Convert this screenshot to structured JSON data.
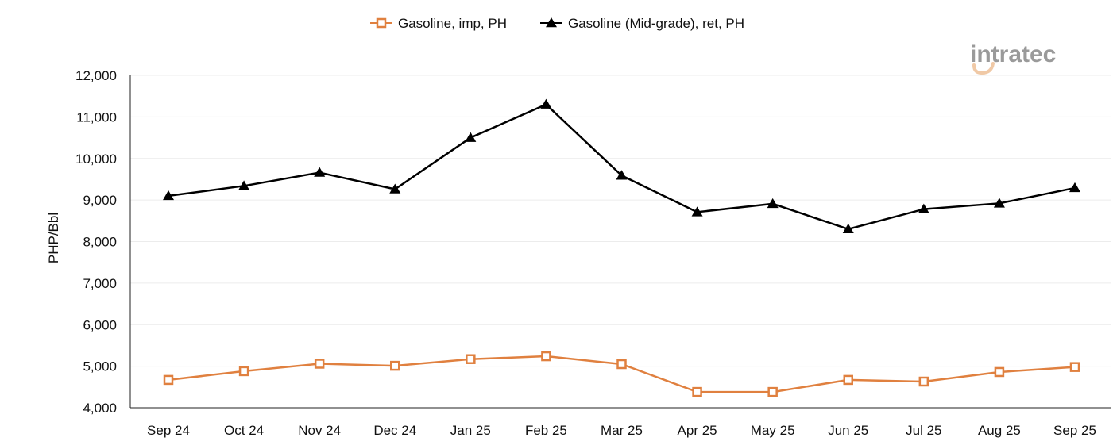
{
  "logo": {
    "text": "intratec"
  },
  "colors": {
    "imp": "#e0803f",
    "ret": "#000000",
    "grid": "#ececec",
    "logo_gray": "#9a9a9a",
    "logo_accent": "#f0c9a6"
  },
  "chart_data": {
    "type": "line",
    "title": "",
    "xlabel": "",
    "ylabel": "PHP/Bbl",
    "ylim": [
      4000,
      12000
    ],
    "yticks": [
      "4,000",
      "5,000",
      "6,000",
      "7,000",
      "8,000",
      "9,000",
      "10,000",
      "11,000",
      "12,000"
    ],
    "ytick_values": [
      4000,
      5000,
      6000,
      7000,
      8000,
      9000,
      10000,
      11000,
      12000
    ],
    "grid": true,
    "legend_position": "top-center",
    "categories": [
      "Sep 24",
      "Oct 24",
      "Nov 24",
      "Dec 24",
      "Jan 25",
      "Feb 25",
      "Mar 25",
      "Apr 25",
      "May 25",
      "Jun 25",
      "Jul 25",
      "Aug 25",
      "Sep 25"
    ],
    "series": [
      {
        "name": "Gasoline, imp, PH",
        "marker": "square-open",
        "color": "#e0803f",
        "values": [
          4670,
          4880,
          5060,
          5010,
          5170,
          5240,
          5050,
          4380,
          4380,
          4670,
          4630,
          4860,
          4980
        ]
      },
      {
        "name": "Gasoline (Mid-grade), ret, PH",
        "marker": "triangle",
        "color": "#000000",
        "values": [
          9100,
          9340,
          9660,
          9260,
          10500,
          11300,
          9590,
          8710,
          8910,
          8300,
          8780,
          8920,
          9290
        ]
      }
    ]
  }
}
